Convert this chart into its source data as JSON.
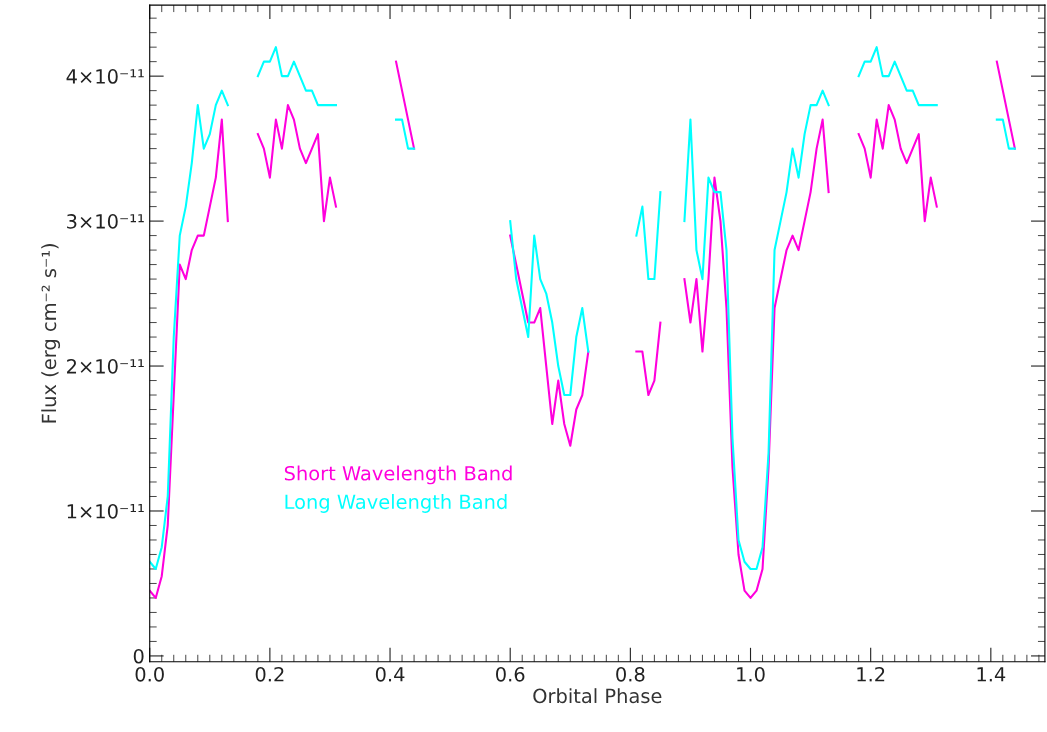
{
  "chart_data": {
    "type": "line",
    "xlabel": "Orbital Phase",
    "ylabel": "Flux (erg cm⁻² s⁻¹)",
    "x": [
      0,
      0.01,
      0.02,
      0.03,
      0.04,
      0.05,
      0.06,
      0.07,
      0.08,
      0.09,
      0.1,
      0.11,
      0.12,
      0.13,
      0.155,
      0.18,
      0.19,
      0.2,
      0.21,
      0.22,
      0.23,
      0.24,
      0.25,
      0.26,
      0.27,
      0.28,
      0.29,
      0.3,
      0.31,
      0.36,
      0.41,
      0.42,
      0.43,
      0.44,
      0.52,
      0.6,
      0.61,
      0.62,
      0.63,
      0.64,
      0.65,
      0.66,
      0.67,
      0.68,
      0.69,
      0.7,
      0.71,
      0.72,
      0.73,
      0.77,
      0.81,
      0.82,
      0.83,
      0.84,
      0.85,
      0.87,
      0.89,
      0.9,
      0.91,
      0.92,
      0.93,
      0.94,
      0.95,
      0.96,
      0.97,
      0.98,
      0.99,
      1.0,
      1.01,
      1.02,
      1.03,
      1.04,
      1.05,
      1.06,
      1.07,
      1.08,
      1.09,
      1.1,
      1.11,
      1.12,
      1.13,
      1.155,
      1.18,
      1.19,
      1.2,
      1.21,
      1.22,
      1.23,
      1.24,
      1.25,
      1.26,
      1.27,
      1.28,
      1.29,
      1.3,
      1.31,
      1.36,
      1.41,
      1.42,
      1.43,
      1.44
    ],
    "series": [
      {
        "name": "Short Wavelength Band",
        "color": "#ff00dd",
        "values": [
          4.5e-12,
          4e-12,
          5.5e-12,
          9e-12,
          1.8e-11,
          2.7e-11,
          2.6e-11,
          2.8e-11,
          2.9e-11,
          2.9e-11,
          3.1e-11,
          3.3e-11,
          3.7e-11,
          3e-11,
          null,
          3.6e-11,
          3.5e-11,
          3.3e-11,
          3.7e-11,
          3.5e-11,
          3.8e-11,
          3.7e-11,
          3.5e-11,
          3.4e-11,
          3.5e-11,
          3.6e-11,
          3e-11,
          3.3e-11,
          3.1e-11,
          null,
          4.1e-11,
          3.9e-11,
          3.7e-11,
          3.5e-11,
          null,
          2.9e-11,
          2.7e-11,
          2.5e-11,
          2.3e-11,
          2.3e-11,
          2.4e-11,
          2e-11,
          1.6e-11,
          1.9e-11,
          1.6e-11,
          1.45e-11,
          1.7e-11,
          1.8e-11,
          2.1e-11,
          null,
          2.1e-11,
          2.1e-11,
          1.8e-11,
          1.9e-11,
          2.3e-11,
          null,
          2.6e-11,
          2.3e-11,
          2.6e-11,
          2.1e-11,
          2.6e-11,
          3.3e-11,
          3e-11,
          2.4e-11,
          1.3e-11,
          7e-12,
          4.5e-12,
          4e-12,
          4.5e-12,
          6e-12,
          1.3e-11,
          2.4e-11,
          2.6e-11,
          2.8e-11,
          2.9e-11,
          2.8e-11,
          3e-11,
          3.2e-11,
          3.5e-11,
          3.7e-11,
          3.2e-11,
          null,
          3.6e-11,
          3.5e-11,
          3.3e-11,
          3.7e-11,
          3.5e-11,
          3.8e-11,
          3.7e-11,
          3.5e-11,
          3.4e-11,
          3.5e-11,
          3.6e-11,
          3e-11,
          3.3e-11,
          3.1e-11,
          null,
          4.1e-11,
          3.9e-11,
          3.7e-11,
          3.5e-11
        ]
      },
      {
        "name": "Long Wavelength Band",
        "color": "#00ffff",
        "values": [
          6.5e-12,
          6e-12,
          7.5e-12,
          1.1e-11,
          2.2e-11,
          2.9e-11,
          3.1e-11,
          3.4e-11,
          3.8e-11,
          3.5e-11,
          3.6e-11,
          3.8e-11,
          3.9e-11,
          3.8e-11,
          null,
          4e-11,
          4.1e-11,
          4.1e-11,
          4.2e-11,
          4e-11,
          4e-11,
          4.1e-11,
          4e-11,
          3.9e-11,
          3.9e-11,
          3.8e-11,
          3.8e-11,
          3.8e-11,
          3.8e-11,
          null,
          3.7e-11,
          3.7e-11,
          3.5e-11,
          3.5e-11,
          null,
          3e-11,
          2.6e-11,
          2.4e-11,
          2.2e-11,
          2.9e-11,
          2.6e-11,
          2.5e-11,
          2.3e-11,
          2e-11,
          1.8e-11,
          1.8e-11,
          2.2e-11,
          2.4e-11,
          2.1e-11,
          null,
          2.9e-11,
          3.1e-11,
          2.6e-11,
          2.6e-11,
          3.2e-11,
          null,
          3e-11,
          3.7e-11,
          2.8e-11,
          2.6e-11,
          3.3e-11,
          3.2e-11,
          3.2e-11,
          2.8e-11,
          1.5e-11,
          8e-12,
          6.5e-12,
          6e-12,
          6e-12,
          7.5e-12,
          1.4e-11,
          2.8e-11,
          3e-11,
          3.2e-11,
          3.5e-11,
          3.3e-11,
          3.6e-11,
          3.8e-11,
          3.8e-11,
          3.9e-11,
          3.8e-11,
          null,
          4e-11,
          4.1e-11,
          4.1e-11,
          4.2e-11,
          4e-11,
          4e-11,
          4.1e-11,
          4e-11,
          3.9e-11,
          3.9e-11,
          3.8e-11,
          3.8e-11,
          3.8e-11,
          3.8e-11,
          null,
          3.7e-11,
          3.7e-11,
          3.5e-11,
          3.5e-11
        ]
      }
    ],
    "xlim": [
      0,
      1.49
    ],
    "ylim": [
      -4e-13,
      4.49e-11
    ],
    "xticks": [
      {
        "value": 0,
        "label": "0.0"
      },
      0.2,
      0.4,
      0.6,
      0.8,
      {
        "value": 1,
        "label": "1.0"
      },
      1.2,
      1.4
    ],
    "yticks": [
      {
        "value": 0,
        "label": "0"
      },
      {
        "value": 1e-11,
        "label": "1×10⁻¹¹"
      },
      {
        "value": 2e-11,
        "label": "2×10⁻¹¹"
      },
      {
        "value": 3e-11,
        "label": "3×10⁻¹¹"
      },
      {
        "value": 4e-11,
        "label": "4×10⁻¹¹"
      }
    ],
    "legend": "bottom left",
    "grid": false,
    "line_style": "solid",
    "marker": "none"
  }
}
